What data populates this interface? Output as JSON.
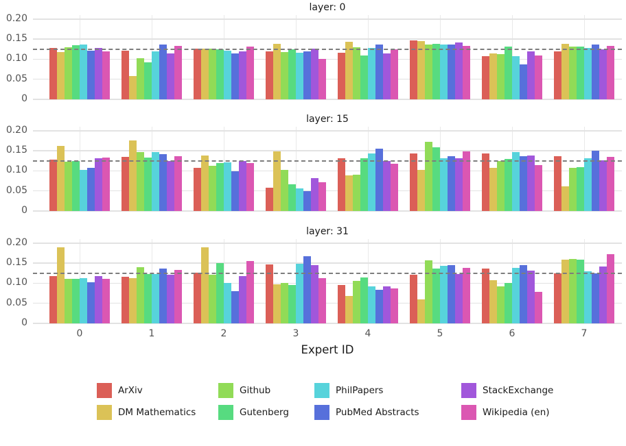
{
  "figure": {
    "xlabel": "Expert ID",
    "x_ticks": [
      "0",
      "1",
      "2",
      "3",
      "4",
      "5",
      "6",
      "7"
    ],
    "y_tick_labels": [
      "0",
      "0.05",
      "0.10",
      "0.15",
      "0.20"
    ],
    "background_color": "#ffffff",
    "grid_color": "#e2e2e2",
    "dashed_reference_color": "#7d7d7d"
  },
  "legend": {
    "position": "bottom",
    "items": [
      {
        "label": "ArXiv",
        "color": "#db5f57"
      },
      {
        "label": "DM Mathematics",
        "color": "#dbc257"
      },
      {
        "label": "Github",
        "color": "#91db57"
      },
      {
        "label": "Gutenberg",
        "color": "#57db80"
      },
      {
        "label": "PhilPapers",
        "color": "#57d3db"
      },
      {
        "label": "PubMed Abstracts",
        "color": "#5770db"
      },
      {
        "label": "StackExchange",
        "color": "#a157db"
      },
      {
        "label": "Wikipedia (en)",
        "color": "#db57b2"
      }
    ]
  },
  "chart_data": [
    {
      "type": "bar",
      "title": "layer: 0",
      "xlabel": "Expert ID",
      "ylabel": "",
      "categories": [
        0,
        1,
        2,
        3,
        4,
        5,
        6,
        7
      ],
      "ylim": [
        0,
        0.21
      ],
      "yticks": [
        0,
        0.05,
        0.1,
        0.15,
        0.2
      ],
      "reference_line": 0.125,
      "grid": true,
      "series": [
        {
          "name": "ArXiv",
          "values": [
            0.128,
            0.121,
            0.127,
            0.12,
            0.116,
            0.147,
            0.107,
            0.12
          ]
        },
        {
          "name": "DM Mathematics",
          "values": [
            0.118,
            0.058,
            0.127,
            0.138,
            0.143,
            0.146,
            0.115,
            0.139
          ]
        },
        {
          "name": "Github",
          "values": [
            0.13,
            0.102,
            0.127,
            0.118,
            0.13,
            0.137,
            0.112,
            0.132
          ]
        },
        {
          "name": "Gutenberg",
          "values": [
            0.135,
            0.093,
            0.125,
            0.125,
            0.11,
            0.139,
            0.131,
            0.132
          ]
        },
        {
          "name": "PhilPapers",
          "values": [
            0.136,
            0.12,
            0.122,
            0.116,
            0.128,
            0.137,
            0.108,
            0.128
          ]
        },
        {
          "name": "PubMed Abstracts",
          "values": [
            0.122,
            0.137,
            0.115,
            0.12,
            0.137,
            0.137,
            0.087,
            0.136
          ]
        },
        {
          "name": "StackExchange",
          "values": [
            0.128,
            0.115,
            0.119,
            0.127,
            0.114,
            0.141,
            0.119,
            0.125
          ]
        },
        {
          "name": "Wikipedia (en)",
          "values": [
            0.12,
            0.134,
            0.132,
            0.1,
            0.125,
            0.133,
            0.11,
            0.133
          ]
        }
      ]
    },
    {
      "type": "bar",
      "title": "layer: 15",
      "xlabel": "Expert ID",
      "ylabel": "",
      "categories": [
        0,
        1,
        2,
        3,
        4,
        5,
        6,
        7
      ],
      "ylim": [
        0,
        0.21
      ],
      "yticks": [
        0,
        0.05,
        0.1,
        0.15,
        0.2
      ],
      "reference_line": 0.125,
      "grid": true,
      "series": [
        {
          "name": "ArXiv",
          "values": [
            0.128,
            0.135,
            0.108,
            0.058,
            0.132,
            0.143,
            0.143,
            0.137
          ]
        },
        {
          "name": "DM Mathematics",
          "values": [
            0.163,
            0.176,
            0.138,
            0.148,
            0.088,
            0.102,
            0.107,
            0.062
          ]
        },
        {
          "name": "Github",
          "values": [
            0.123,
            0.147,
            0.113,
            0.103,
            0.09,
            0.172,
            0.124,
            0.107
          ]
        },
        {
          "name": "Gutenberg",
          "values": [
            0.124,
            0.133,
            0.12,
            0.066,
            0.132,
            0.159,
            0.13,
            0.11
          ]
        },
        {
          "name": "PhilPapers",
          "values": [
            0.102,
            0.147,
            0.121,
            0.056,
            0.143,
            0.132,
            0.147,
            0.132
          ]
        },
        {
          "name": "PubMed Abstracts",
          "values": [
            0.108,
            0.141,
            0.099,
            0.05,
            0.155,
            0.136,
            0.137,
            0.15
          ]
        },
        {
          "name": "StackExchange",
          "values": [
            0.131,
            0.125,
            0.124,
            0.082,
            0.125,
            0.132,
            0.139,
            0.126
          ]
        },
        {
          "name": "Wikipedia (en)",
          "values": [
            0.134,
            0.137,
            0.12,
            0.071,
            0.118,
            0.149,
            0.115,
            0.135
          ]
        }
      ]
    },
    {
      "type": "bar",
      "title": "layer: 31",
      "xlabel": "Expert ID",
      "ylabel": "",
      "categories": [
        0,
        1,
        2,
        3,
        4,
        5,
        6,
        7
      ],
      "ylim": [
        0,
        0.21
      ],
      "yticks": [
        0,
        0.05,
        0.1,
        0.15,
        0.2
      ],
      "reference_line": 0.125,
      "grid": true,
      "series": [
        {
          "name": "ArXiv",
          "values": [
            0.118,
            0.116,
            0.127,
            0.147,
            0.095,
            0.122,
            0.137,
            0.125
          ]
        },
        {
          "name": "DM Mathematics",
          "values": [
            0.19,
            0.113,
            0.19,
            0.097,
            0.068,
            0.06,
            0.108,
            0.158
          ]
        },
        {
          "name": "Github",
          "values": [
            0.111,
            0.14,
            0.122,
            0.101,
            0.106,
            0.157,
            0.092,
            0.16
          ]
        },
        {
          "name": "Gutenberg",
          "values": [
            0.111,
            0.123,
            0.15,
            0.095,
            0.114,
            0.137,
            0.1,
            0.158
          ]
        },
        {
          "name": "PhilPapers",
          "values": [
            0.112,
            0.123,
            0.1,
            0.149,
            0.092,
            0.143,
            0.139,
            0.13
          ]
        },
        {
          "name": "PubMed Abstracts",
          "values": [
            0.102,
            0.136,
            0.081,
            0.168,
            0.084,
            0.146,
            0.146,
            0.125
          ]
        },
        {
          "name": "StackExchange",
          "values": [
            0.118,
            0.122,
            0.118,
            0.145,
            0.093,
            0.123,
            0.132,
            0.142
          ]
        },
        {
          "name": "Wikipedia (en)",
          "values": [
            0.111,
            0.133,
            0.156,
            0.113,
            0.087,
            0.139,
            0.079,
            0.173
          ]
        }
      ]
    }
  ]
}
